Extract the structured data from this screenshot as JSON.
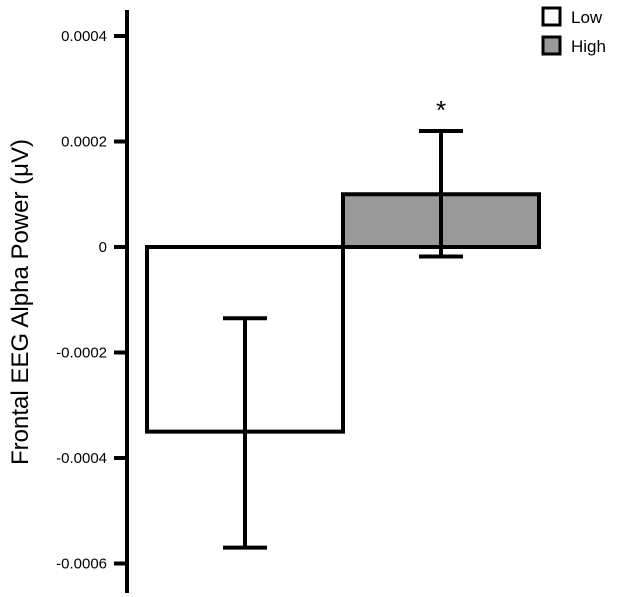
{
  "chart_data": {
    "type": "bar",
    "title": "",
    "ylabel": "Frontal EEG Alpha Power (μV)",
    "xlabel": "",
    "ylim": [
      -0.00065,
      0.00045
    ],
    "yticks": [
      0.0004,
      0.0002,
      0,
      -0.0002,
      -0.0004,
      -0.0006
    ],
    "ytick_labels": [
      "0.0004",
      "0.0002",
      "0",
      "-0.0002",
      "-0.0004",
      "-0.0006"
    ],
    "grid": false,
    "legend_position": "top-right",
    "series": [
      {
        "name": "Low",
        "value": -0.00035,
        "error_low": -0.00057,
        "error_high": -0.000135,
        "fill": "#ffffff"
      },
      {
        "name": "High",
        "value": 0.0001,
        "error_low": -1.8e-05,
        "error_high": 0.00022,
        "fill": "#999999"
      }
    ],
    "annotations": [
      {
        "text": "*",
        "series": "High"
      }
    ]
  }
}
